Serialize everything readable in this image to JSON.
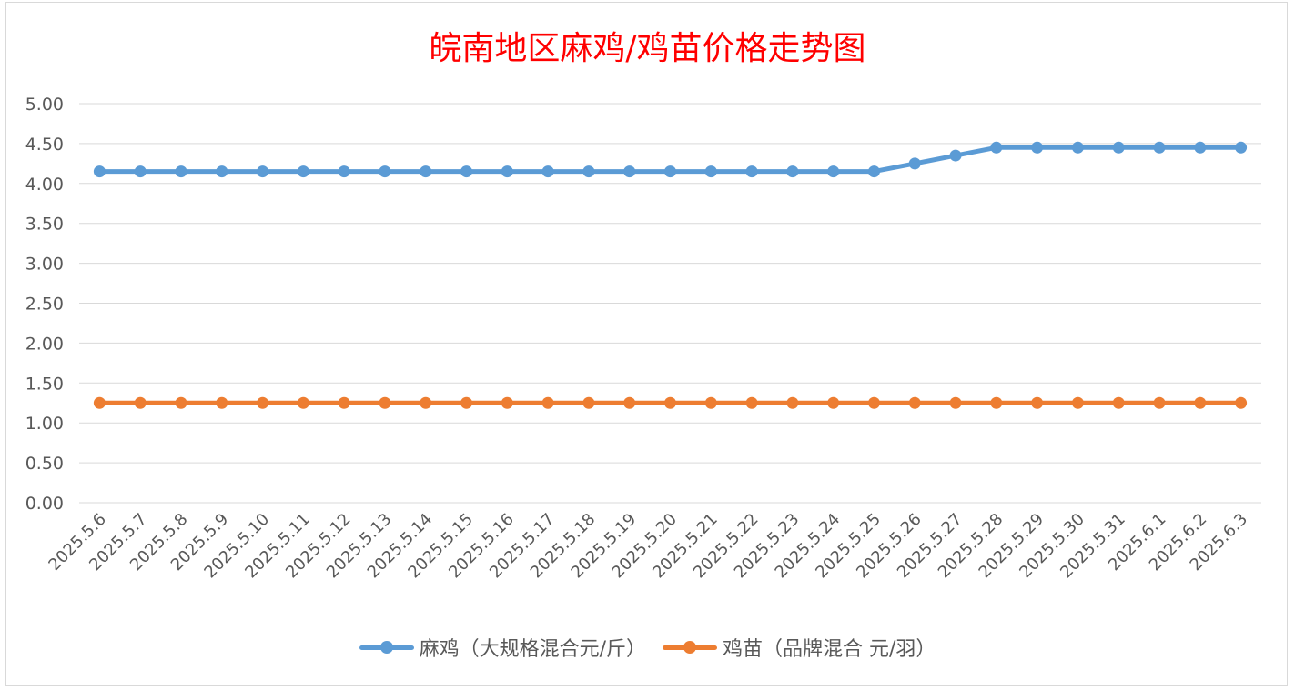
{
  "chart_data": {
    "type": "line",
    "title": "皖南地区麻鸡/鸡苗价格走势图",
    "xlabel": "",
    "ylabel": "",
    "ylim": [
      0,
      5
    ],
    "yticks": [
      "0.00",
      "0.50",
      "1.00",
      "1.50",
      "2.00",
      "2.50",
      "3.00",
      "3.50",
      "4.00",
      "4.50",
      "5.00"
    ],
    "grid": true,
    "legend_position": "bottom",
    "categories": [
      "2025.5.6",
      "2025.5.7",
      "2025.5.8",
      "2025.5.9",
      "2025.5.10",
      "2025.5.11",
      "2025.5.12",
      "2025.5.13",
      "2025.5.14",
      "2025.5.15",
      "2025.5.16",
      "2025.5.17",
      "2025.5.18",
      "2025.5.19",
      "2025.5.20",
      "2025.5.21",
      "2025.5.22",
      "2025.5.23",
      "2025.5.24",
      "2025.5.25",
      "2025.5.26",
      "2025.5.27",
      "2025.5.28",
      "2025.5.29",
      "2025.5.30",
      "2025.5.31",
      "2025.6.1",
      "2025.6.2",
      "2025.6.3"
    ],
    "series": [
      {
        "name": "麻鸡（大规格混合元/斤）",
        "color": "#5b9bd5",
        "values": [
          4.15,
          4.15,
          4.15,
          4.15,
          4.15,
          4.15,
          4.15,
          4.15,
          4.15,
          4.15,
          4.15,
          4.15,
          4.15,
          4.15,
          4.15,
          4.15,
          4.15,
          4.15,
          4.15,
          4.15,
          4.25,
          4.35,
          4.45,
          4.45,
          4.45,
          4.45,
          4.45,
          4.45,
          4.45
        ]
      },
      {
        "name": "鸡苗（品牌混合 元/羽）",
        "color": "#ed7d31",
        "values": [
          1.25,
          1.25,
          1.25,
          1.25,
          1.25,
          1.25,
          1.25,
          1.25,
          1.25,
          1.25,
          1.25,
          1.25,
          1.25,
          1.25,
          1.25,
          1.25,
          1.25,
          1.25,
          1.25,
          1.25,
          1.25,
          1.25,
          1.25,
          1.25,
          1.25,
          1.25,
          1.25,
          1.25,
          1.25
        ]
      }
    ]
  }
}
